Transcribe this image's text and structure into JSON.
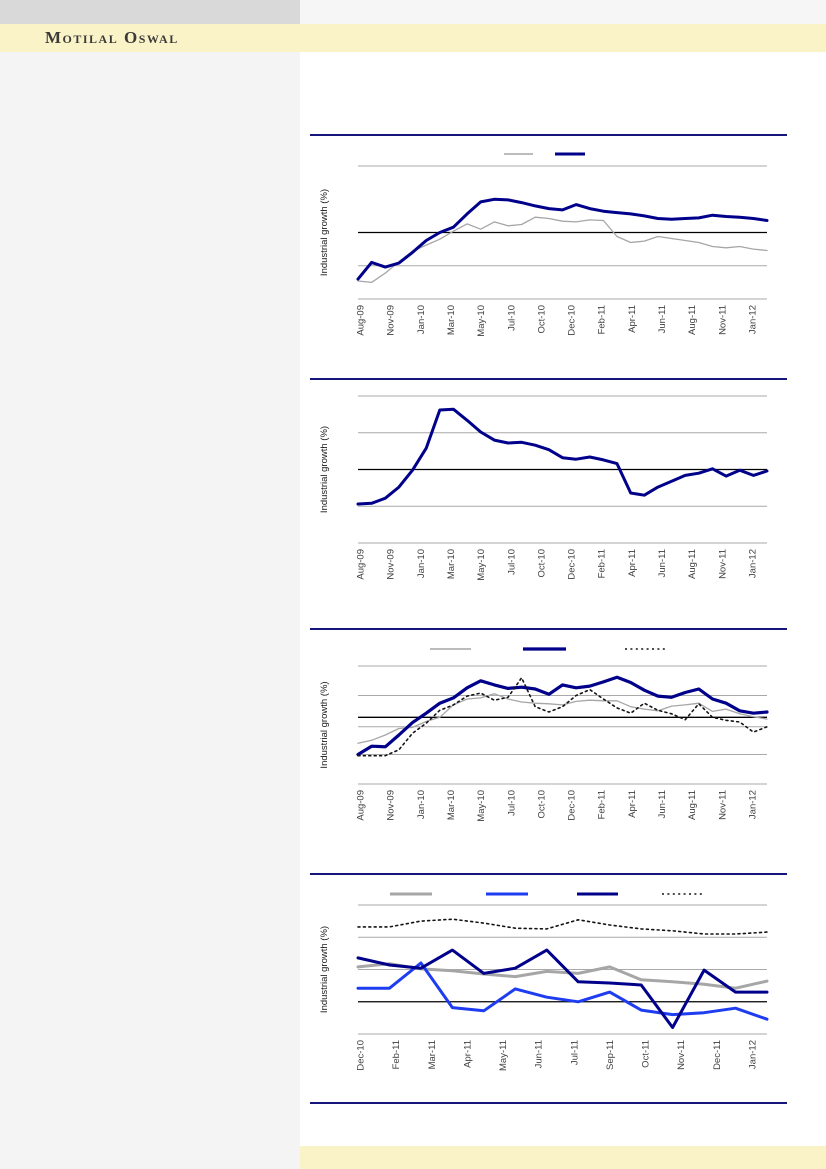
{
  "brand": {
    "name": "Motilal Oswal"
  },
  "colors": {
    "navy": "#00008B",
    "gray": "#A6A6A6",
    "blue": "#1E3CF0",
    "black_dotted": "#141414",
    "grid": "#A9A9A9",
    "axis_black": "#000000",
    "rule_navy": "#15157B",
    "band_yellow": "#FBF3C8",
    "panel_gray": "#F4F4F4",
    "topbar_gray": "#D9D9D9",
    "tick_text": "#3F3F3F"
  },
  "chart_data": [
    {
      "type": "line",
      "title": "",
      "xlabel": "",
      "ylabel": "Industrial growth (%)",
      "ylim": [
        -5,
        15
      ],
      "grid": true,
      "legend_position": "top",
      "legend_labels": [
        "",
        ""
      ],
      "tick_labels": [
        "Aug-09",
        "Nov-09",
        "Jan-10",
        "Mar-10",
        "May-10",
        "Jul-10",
        "Oct-10",
        "Dec-10",
        "Feb-11",
        "Apr-11",
        "Jun-11",
        "Aug-11",
        "Nov-11",
        "Jan-12"
      ],
      "x_range": [
        "Aug-09",
        "Feb-12"
      ],
      "gridlines": [
        {
          "v": 15,
          "k": "grid"
        },
        {
          "v": 5,
          "k": "black"
        },
        {
          "v": 0,
          "k": "grid"
        },
        {
          "v": -5,
          "k": "grid"
        }
      ],
      "series": [
        {
          "name": "gray-line",
          "color": "gray",
          "width": 1.3,
          "dotted": false,
          "values": [
            -2.3,
            -2.5,
            -1.1,
            0.6,
            2.2,
            3.1,
            4.0,
            5.2,
            6.3,
            5.5,
            6.6,
            6.0,
            6.2,
            7.3,
            7.1,
            6.7,
            6.6,
            6.9,
            6.8,
            4.4,
            3.5,
            3.7,
            4.4,
            4.1,
            3.8,
            3.5,
            2.9,
            2.7,
            2.9,
            2.5,
            2.3
          ]
        },
        {
          "name": "navy-line",
          "color": "navy",
          "width": 3,
          "dotted": false,
          "values": [
            -2.0,
            0.5,
            -0.2,
            0.4,
            2.0,
            3.8,
            5.0,
            5.8,
            7.8,
            9.6,
            10.0,
            9.9,
            9.5,
            9.0,
            8.6,
            8.4,
            9.2,
            8.6,
            8.2,
            8.0,
            7.8,
            7.5,
            7.1,
            7.0,
            7.1,
            7.2,
            7.6,
            7.4,
            7.3,
            7.1,
            6.8
          ]
        }
      ]
    },
    {
      "type": "line",
      "title": "",
      "xlabel": "",
      "ylabel": "Industrial growth (%)",
      "ylim": [
        -5,
        15
      ],
      "grid": true,
      "legend_position": "none",
      "legend_labels": [],
      "tick_labels": [
        "Aug-09",
        "Nov-09",
        "Jan-10",
        "Mar-10",
        "May-10",
        "Jul-10",
        "Oct-10",
        "Dec-10",
        "Feb-11",
        "Apr-11",
        "Jun-11",
        "Aug-11",
        "Nov-11",
        "Jan-12"
      ],
      "x_range": [
        "Aug-09",
        "Feb-12"
      ],
      "gridlines": [
        {
          "v": 15,
          "k": "grid"
        },
        {
          "v": 10,
          "k": "grid"
        },
        {
          "v": 5,
          "k": "black"
        },
        {
          "v": 0,
          "k": "grid"
        },
        {
          "v": -5,
          "k": "grid"
        }
      ],
      "series": [
        {
          "name": "navy-line",
          "color": "navy",
          "width": 3,
          "dotted": false,
          "values": [
            0.3,
            0.4,
            1.1,
            2.6,
            4.9,
            7.9,
            13.1,
            13.2,
            11.7,
            10.1,
            9.0,
            8.6,
            8.7,
            8.3,
            7.7,
            6.6,
            6.4,
            6.7,
            6.3,
            5.8,
            1.8,
            1.5,
            2.6,
            3.4,
            4.2,
            4.5,
            5.1,
            4.1,
            4.9,
            4.2,
            4.8
          ]
        }
      ]
    },
    {
      "type": "line",
      "title": "",
      "xlabel": "",
      "ylabel": "Industrial growth (%)",
      "ylim": [
        -5,
        15
      ],
      "grid": true,
      "legend_position": "top",
      "legend_labels": [
        "",
        "",
        ""
      ],
      "tick_labels": [
        "Aug-09",
        "Nov-09",
        "Jan-10",
        "Mar-10",
        "May-10",
        "Jul-10",
        "Oct-10",
        "Dec-10",
        "Feb-11",
        "Apr-11",
        "Jun-11",
        "Aug-11",
        "Nov-11",
        "Jan-12"
      ],
      "x_range": [
        "Aug-09",
        "Feb-12"
      ],
      "gridlines": [
        {
          "v": 15,
          "k": "grid"
        },
        {
          "v": 10,
          "k": "grid"
        },
        {
          "v": 6.3,
          "k": "black"
        },
        {
          "v": 4.7,
          "k": "grid"
        },
        {
          "v": 0,
          "k": "grid"
        },
        {
          "v": -5,
          "k": "grid"
        }
      ],
      "series": [
        {
          "name": "gray-line",
          "color": "gray",
          "width": 1.3,
          "dotted": false,
          "values": [
            1.9,
            2.4,
            3.3,
            4.4,
            4.6,
            5.6,
            6.3,
            8.4,
            9.4,
            9.6,
            10.3,
            9.4,
            8.9,
            8.7,
            8.6,
            8.4,
            9.0,
            9.2,
            9.1,
            9.1,
            8.1,
            7.7,
            7.4,
            8.2,
            8.4,
            8.7,
            7.3,
            7.7,
            6.9,
            6.4,
            6.0
          ]
        },
        {
          "name": "navy-line",
          "color": "navy",
          "width": 3.2,
          "dotted": false,
          "values": [
            0.0,
            1.4,
            1.3,
            3.3,
            5.4,
            7.0,
            8.7,
            9.6,
            11.3,
            12.5,
            11.8,
            11.2,
            11.4,
            11.1,
            10.2,
            11.8,
            11.3,
            11.6,
            12.3,
            13.1,
            12.2,
            10.9,
            9.9,
            9.7,
            10.5,
            11.1,
            9.4,
            8.7,
            7.4,
            7.0,
            7.2
          ]
        },
        {
          "name": "black-dotted-line",
          "color": "black_dotted",
          "width": 1.6,
          "dotted": true,
          "values": [
            -0.2,
            -0.2,
            -0.2,
            0.8,
            3.6,
            5.3,
            7.5,
            8.4,
            9.9,
            10.4,
            9.2,
            9.7,
            13.0,
            8.1,
            7.2,
            8.1,
            10.0,
            11.0,
            9.4,
            7.9,
            7.0,
            8.7,
            7.5,
            6.9,
            5.9,
            8.6,
            6.3,
            5.8,
            5.5,
            3.8,
            4.7
          ]
        }
      ]
    },
    {
      "type": "line",
      "title": "",
      "xlabel": "",
      "ylabel": "Industrial growth (%)",
      "ylim": [
        -5,
        15
      ],
      "grid": true,
      "legend_position": "top",
      "legend_labels": [
        "",
        "",
        "",
        ""
      ],
      "tick_labels": [
        "Dec-10",
        "Feb-11",
        "Mar-11",
        "Apr-11",
        "May-11",
        "Jun-11",
        "Jul-11",
        "Sep-11",
        "Oct-11",
        "Nov-11",
        "Dec-11",
        "Jan-12"
      ],
      "x_range": [
        "Dec-10",
        "Jan-12"
      ],
      "gridlines": [
        {
          "v": 15,
          "k": "grid"
        },
        {
          "v": 10,
          "k": "grid"
        },
        {
          "v": 5,
          "k": "grid"
        },
        {
          "v": 0,
          "k": "black"
        },
        {
          "v": -5,
          "k": "grid"
        }
      ],
      "series": [
        {
          "name": "gray-line",
          "color": "gray",
          "width": 3,
          "dotted": false,
          "values": [
            5.4,
            5.9,
            5.1,
            4.8,
            4.3,
            3.9,
            4.7,
            4.4,
            5.4,
            3.4,
            3.1,
            2.7,
            2.1,
            3.2
          ]
        },
        {
          "name": "blue-line",
          "color": "blue",
          "width": 3,
          "dotted": false,
          "values": [
            2.1,
            2.1,
            6.0,
            -0.9,
            -1.4,
            2.0,
            0.7,
            0.0,
            1.5,
            -1.3,
            -2.0,
            -1.7,
            -1.0,
            -2.7
          ]
        },
        {
          "name": "navy-line",
          "color": "navy",
          "width": 3,
          "dotted": false,
          "values": [
            6.8,
            5.7,
            5.2,
            8.0,
            4.4,
            5.2,
            8.0,
            3.1,
            2.9,
            2.6,
            -4.0,
            4.9,
            1.5,
            1.5
          ]
        },
        {
          "name": "black-dotted-line",
          "color": "black_dotted",
          "width": 1.6,
          "dotted": true,
          "values": [
            11.6,
            11.6,
            12.5,
            12.8,
            12.2,
            11.4,
            11.3,
            12.7,
            11.9,
            11.3,
            11.0,
            10.5,
            10.5,
            10.8
          ]
        }
      ]
    }
  ]
}
